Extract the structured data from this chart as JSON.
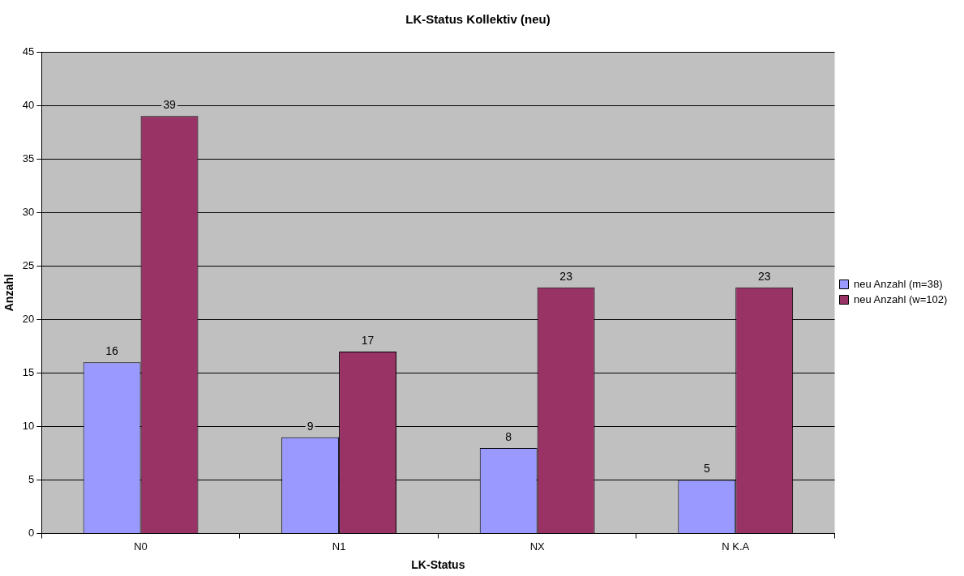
{
  "chart_data": {
    "type": "bar",
    "title": "LK-Status Kollektiv (neu)",
    "xlabel": "LK-Status",
    "ylabel": "Anzahl",
    "categories": [
      "N0",
      "N1",
      "NX",
      "N K.A"
    ],
    "series": [
      {
        "name": "neu Anzahl (m=38)",
        "color": "#9999ff",
        "values": [
          16,
          9,
          8,
          5
        ]
      },
      {
        "name": "neu Anzahl (w=102)",
        "color": "#993366",
        "values": [
          39,
          17,
          23,
          23
        ]
      }
    ],
    "ylim": [
      0,
      45
    ],
    "yticks": [
      0,
      5,
      10,
      15,
      20,
      25,
      30,
      35,
      40,
      45
    ],
    "grid": "y",
    "legend": "right",
    "data_labels": true
  }
}
